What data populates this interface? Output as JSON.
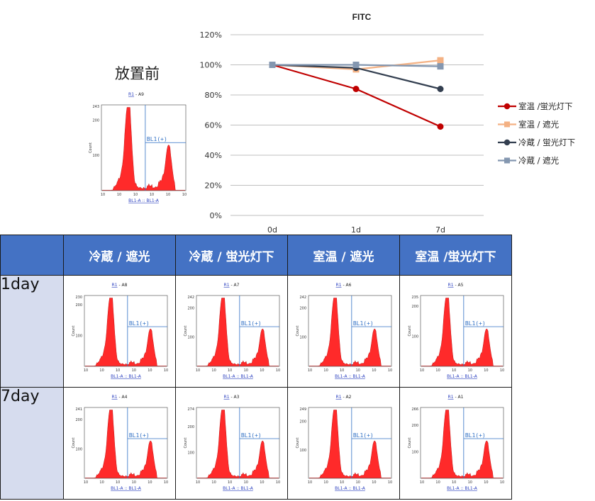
{
  "chart_data": {
    "type": "line",
    "title": "FITC",
    "categories": [
      "0d",
      "1d",
      "7d"
    ],
    "ylim": [
      0,
      120
    ],
    "yticks": [
      "0%",
      "20%",
      "40%",
      "60%",
      "80%",
      "100%",
      "120%"
    ],
    "grid": true,
    "legend_position": "right",
    "series": [
      {
        "name": "室温 /蛍光灯下",
        "values": [
          100,
          84,
          59
        ],
        "color": "#c00000",
        "marker": "circle"
      },
      {
        "name": "室温 / 遮光",
        "values": [
          100,
          97,
          103
        ],
        "color": "#f4b183",
        "marker": "square"
      },
      {
        "name": "冷蔵 / 蛍光灯下",
        "values": [
          100,
          98,
          84
        ],
        "color": "#333f50",
        "marker": "circle"
      },
      {
        "name": "冷蔵 / 遮光",
        "values": [
          100,
          100,
          99
        ],
        "color": "#8497b0",
        "marker": "square"
      }
    ]
  },
  "before": {
    "title": "放置前",
    "histogram": {
      "sample": "A9",
      "ymax": "243"
    }
  },
  "table": {
    "columns": [
      "冷蔵 / 遮光",
      "冷蔵 / 蛍光灯下",
      "室温 / 遮光",
      "室温 /蛍光灯下"
    ],
    "rows": [
      {
        "label": "1day",
        "samples": [
          "A8",
          "A7",
          "A6",
          "A5"
        ],
        "ymax": [
          "230",
          "242",
          "242",
          "235"
        ]
      },
      {
        "label": "7day",
        "samples": [
          "A4",
          "A3",
          "A2",
          "A1"
        ],
        "ymax": [
          "241",
          "274",
          "249",
          "266"
        ]
      }
    ]
  },
  "histogram_common": {
    "gate_ref": "R1",
    "separator": " - ",
    "gate_label": "BL1(+)",
    "ylabel": "Count",
    "xlabel": "BL1-A :: BL1-A",
    "ymid": "100",
    "ylow": "200",
    "xticks": [
      "10",
      "10",
      "10",
      "10",
      "10",
      "10"
    ],
    "fill_color": "#ff2a2a",
    "gate_color": "#2f6fc4"
  }
}
